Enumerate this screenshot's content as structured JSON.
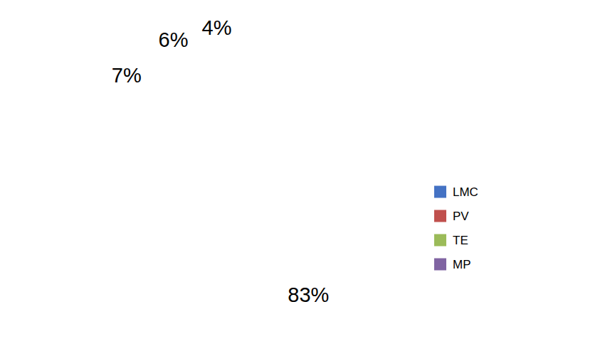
{
  "chart_data": {
    "type": "pie",
    "categories": [
      "LMC",
      "PV",
      "TE",
      "MP"
    ],
    "values": [
      83,
      7,
      6,
      4
    ],
    "value_labels": [
      "83%",
      "7%",
      "6%",
      "4%"
    ],
    "colors": [
      "#4472C4",
      "#C0504D",
      "#9BBB59",
      "#8064A2"
    ],
    "color": "#FFFFFF",
    "data_labels": true,
    "legend": "right"
  }
}
